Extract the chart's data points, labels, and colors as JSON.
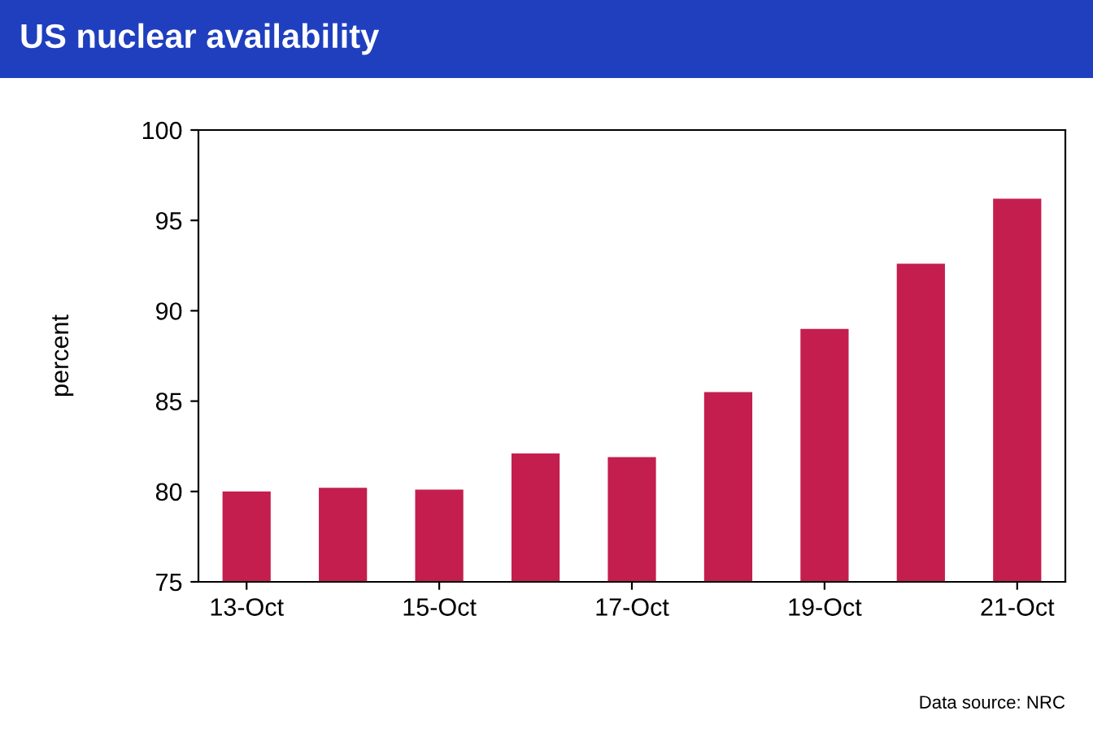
{
  "chart_data": {
    "type": "bar",
    "title": "US nuclear availability",
    "ylabel": "percent",
    "categories": [
      "13-Oct",
      null,
      "15-Oct",
      null,
      "17-Oct",
      null,
      "19-Oct",
      null,
      "21-Oct"
    ],
    "values": [
      80.0,
      80.2,
      80.1,
      82.1,
      81.9,
      85.5,
      89.0,
      92.6,
      96.2
    ],
    "color": "#c41e4e",
    "ylim": [
      75,
      100
    ],
    "yticks": [
      75,
      80,
      85,
      90,
      95,
      100
    ],
    "annotations": [
      "Data source: NRC"
    ]
  }
}
